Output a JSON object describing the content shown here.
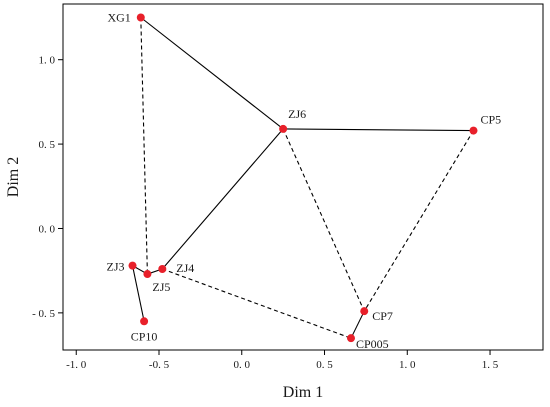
{
  "chart_data": {
    "type": "scatter",
    "title": "",
    "xlabel": "Dim 1",
    "ylabel": "Dim 2",
    "xlim": [
      -1.08,
      1.82
    ],
    "ylim": [
      -0.72,
      1.33
    ],
    "xticks": [
      -1.0,
      -0.5,
      0.0,
      0.5,
      1.0,
      1.5
    ],
    "xtick_labels": [
      "-1. 0",
      "-0. 5",
      "0. 0",
      "0. 5",
      "1. 0",
      "1. 5"
    ],
    "yticks": [
      -0.5,
      0.0,
      0.5,
      1.0
    ],
    "ytick_labels": [
      "- 0. 5",
      "0. 0",
      "0. 5",
      "1. 0"
    ],
    "grid": false,
    "marker_color": "#e8202a",
    "points": [
      {
        "label": "XG1",
        "x": -0.61,
        "y": 1.25
      },
      {
        "label": "ZJ6",
        "x": 0.25,
        "y": 0.59
      },
      {
        "label": "CP5",
        "x": 1.4,
        "y": 0.58
      },
      {
        "label": "ZJ3",
        "x": -0.66,
        "y": -0.22
      },
      {
        "label": "ZJ4",
        "x": -0.48,
        "y": -0.24
      },
      {
        "label": "ZJ5",
        "x": -0.57,
        "y": -0.27
      },
      {
        "label": "CP10",
        "x": -0.59,
        "y": -0.55
      },
      {
        "label": "CP7",
        "x": 0.74,
        "y": -0.49
      },
      {
        "label": "CP005",
        "x": 0.66,
        "y": -0.65
      }
    ],
    "edges_solid": [
      [
        "XG1",
        "ZJ6"
      ],
      [
        "ZJ6",
        "CP5"
      ],
      [
        "ZJ6",
        "ZJ4"
      ],
      [
        "ZJ4",
        "ZJ5"
      ],
      [
        "ZJ5",
        "ZJ3"
      ],
      [
        "ZJ3",
        "CP10"
      ],
      [
        "CP7",
        "CP005"
      ]
    ],
    "edges_dashed": [
      [
        "XG1",
        "ZJ5"
      ],
      [
        "ZJ6",
        "CP7"
      ],
      [
        "CP5",
        "CP7"
      ],
      [
        "ZJ4",
        "CP005"
      ]
    ]
  }
}
